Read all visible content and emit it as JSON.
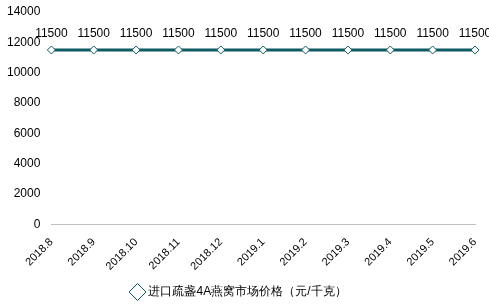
{
  "chart_data": {
    "type": "line",
    "categories": [
      "2018.8",
      "2018.9",
      "2018.10",
      "2018.11",
      "2018.12",
      "2019.1",
      "2019.2",
      "2019.3",
      "2019.4",
      "2019.5",
      "2019.6"
    ],
    "series": [
      {
        "name": "进口疏盏4A燕窝市场价格（元/千克）",
        "color": "#0f5b63",
        "marker": "diamond",
        "line_style": "solid",
        "values": [
          11500,
          11500,
          11500,
          11500,
          11500,
          11500,
          11500,
          11500,
          11500,
          11500,
          11500
        ]
      }
    ],
    "ylim": [
      0,
      14000
    ],
    "yticks": [
      0,
      2000,
      4000,
      6000,
      8000,
      10000,
      12000,
      14000
    ],
    "grid": false,
    "legend": "bottom",
    "data_labels": true
  }
}
